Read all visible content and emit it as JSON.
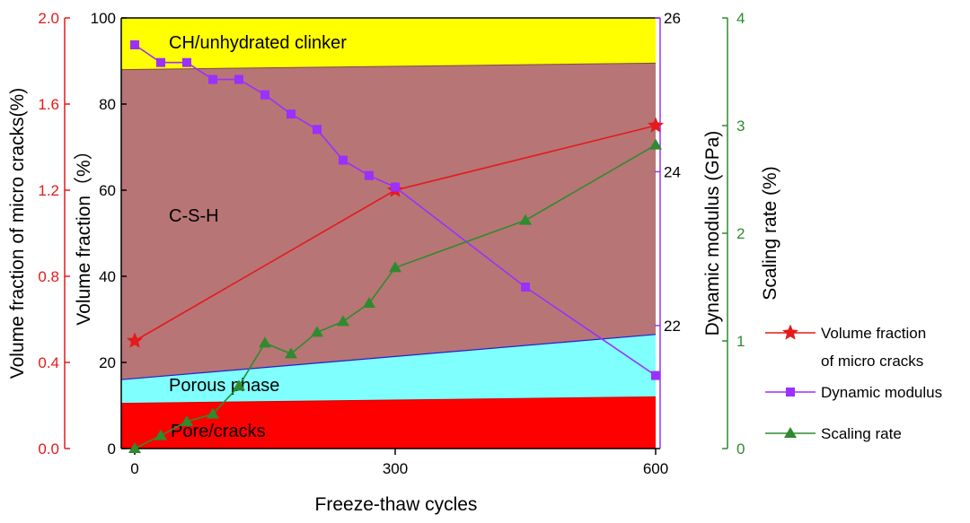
{
  "chart_data": {
    "type": "area",
    "xlabel": "Freeze-thaw cycles",
    "x_ticks": [
      0,
      300,
      600
    ],
    "xlim": [
      0,
      600
    ],
    "colors": {
      "red_axis": "#e41a1c",
      "purple_axis": "#9b30ff",
      "green_axis": "#2e8b2e",
      "black": "#000000",
      "pore": "#ff0000",
      "porous": "#80ffff",
      "csh": "#b87575",
      "ch": "#ffff00"
    },
    "axes": {
      "volume_fraction": {
        "label": "Volume fraction（%）",
        "ticks": [
          0,
          20,
          40,
          60,
          80,
          100
        ],
        "range": [
          0,
          100
        ]
      },
      "micro_cracks": {
        "label": "Volume fraction of micro cracks(%)",
        "ticks": [
          "0.0",
          "0.4",
          "0.8",
          "1.2",
          "1.6",
          "2.0"
        ],
        "range": [
          0,
          2.0
        ]
      },
      "dynamic_modulus": {
        "label": "Dynamic modulus (GPa)",
        "ticks": [
          22,
          24,
          26
        ],
        "range": [
          20.4,
          26
        ]
      },
      "scaling_rate": {
        "label": "Scaling rate (%)",
        "ticks": [
          0,
          1,
          2,
          3,
          4
        ],
        "range": [
          0,
          4
        ]
      }
    },
    "regions": [
      {
        "name": "Pore/cracks",
        "lower": [
          [
            0,
            0
          ],
          [
            600,
            0
          ]
        ],
        "upper": [
          [
            0,
            10.5
          ],
          [
            600,
            12
          ]
        ],
        "color": "#ff0000"
      },
      {
        "name": "Porous phase",
        "lower": [
          [
            0,
            16
          ],
          [
            600,
            26.5
          ]
        ],
        "upper": [
          [
            0,
            16
          ],
          [
            600,
            26.5
          ]
        ],
        "color": "#80ffff"
      },
      {
        "name": "C-S-H",
        "lower": [
          [
            0,
            16
          ],
          [
            600,
            26.5
          ]
        ],
        "upper": [
          [
            0,
            88
          ],
          [
            600,
            89.5
          ]
        ],
        "color": "#b87575"
      },
      {
        "name": "CH/unhydrated clinker",
        "lower": [
          [
            0,
            88
          ],
          [
            600,
            89.5
          ]
        ],
        "upper": [
          [
            0,
            100
          ],
          [
            600,
            100
          ]
        ],
        "color": "#ffff00"
      }
    ],
    "region_labels": [
      "Pore/cracks",
      "Porous phase",
      "C-S-H",
      "CH/unhydrated clinker"
    ],
    "series": [
      {
        "name": "Volume fraction of micro cracks",
        "legend_lines": [
          "Volume fraction",
          "of micro cracks"
        ],
        "axis": "micro_cracks",
        "marker": "star",
        "color": "#e41a1c",
        "x": [
          0,
          300,
          600
        ],
        "y": [
          0.5,
          1.2,
          1.5
        ]
      },
      {
        "name": "Dynamic modulus",
        "legend_lines": [
          "Dynamic modulus"
        ],
        "axis": "dynamic_modulus",
        "marker": "square",
        "color": "#9b30ff",
        "x": [
          0,
          30,
          60,
          90,
          120,
          150,
          180,
          210,
          240,
          270,
          300,
          450,
          600
        ],
        "y": [
          25.65,
          25.42,
          25.42,
          25.2,
          25.2,
          25.0,
          24.75,
          24.55,
          24.15,
          23.95,
          23.8,
          22.5,
          21.35
        ]
      },
      {
        "name": "Scaling rate",
        "legend_lines": [
          "Scaling rate"
        ],
        "axis": "scaling_rate",
        "marker": "triangle",
        "color": "#2e8b2e",
        "x": [
          0,
          30,
          60,
          90,
          120,
          150,
          180,
          210,
          240,
          270,
          300,
          450,
          600
        ],
        "y": [
          0,
          0.12,
          0.25,
          0.32,
          0.58,
          0.98,
          0.88,
          1.08,
          1.18,
          1.35,
          1.68,
          2.12,
          2.82
        ]
      }
    ]
  }
}
